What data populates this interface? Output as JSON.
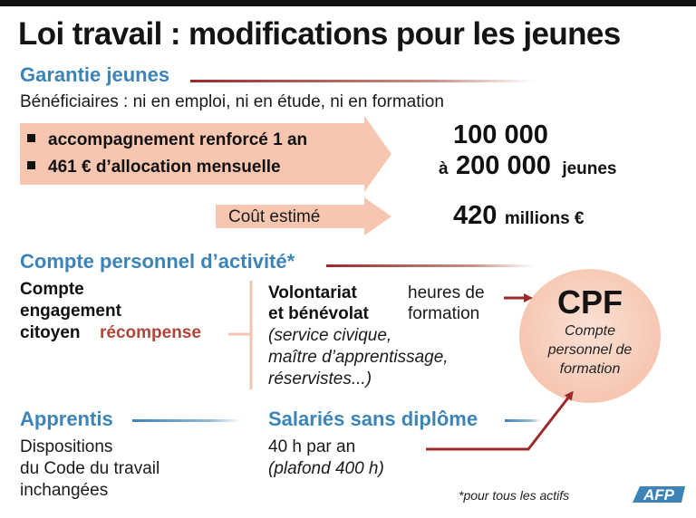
{
  "title": "Loi travail : modifications pour les jeunes",
  "garantie": {
    "heading": "Garantie jeunes",
    "beneficiaires": "Bénéficiaires : ni en emploi, ni en étude, ni en formation",
    "bullet1": "accompagnement renforcé 1 an",
    "bullet2": "461 € d’allocation mensuelle",
    "count_low": "100 000",
    "count_prefix": "à",
    "count_high": "200 000",
    "count_unit": "jeunes",
    "cost_label": "Coût estimé",
    "cost_value": "420",
    "cost_unit": "millions €"
  },
  "cpa": {
    "heading": "Compte personnel d’activité*",
    "cec_line1": "Compte",
    "cec_line2": "engagement",
    "cec_line3": "citoyen",
    "recompense": "récompense",
    "vol_line1": "Volontariat",
    "vol_line2": "et bénévolat",
    "heures_line1": "heures de",
    "heures_line2": "formation",
    "examples_line1": "(service civique,",
    "examples_line2": "maître d’apprentissage,",
    "examples_line3": "réservistes...)"
  },
  "cpf": {
    "acronym": "CPF",
    "line1": "Compte",
    "line2": "personnel de",
    "line3": "formation"
  },
  "apprentis": {
    "heading": "Apprentis",
    "line1": "Dispositions",
    "line2": "du Code du travail",
    "line3": "inchangées"
  },
  "salaries": {
    "heading": "Salariés sans diplôme",
    "line1": "40 h par an",
    "line2": "(plafond 400 h)"
  },
  "footnote": "*pour tous les actifs",
  "logo_text": "AFP",
  "colors": {
    "section_blue": "#3c83b7",
    "accent_red": "#9a2a2a",
    "arrow_fill": "#f6c6b1",
    "recompense_red": "#b0463a"
  }
}
